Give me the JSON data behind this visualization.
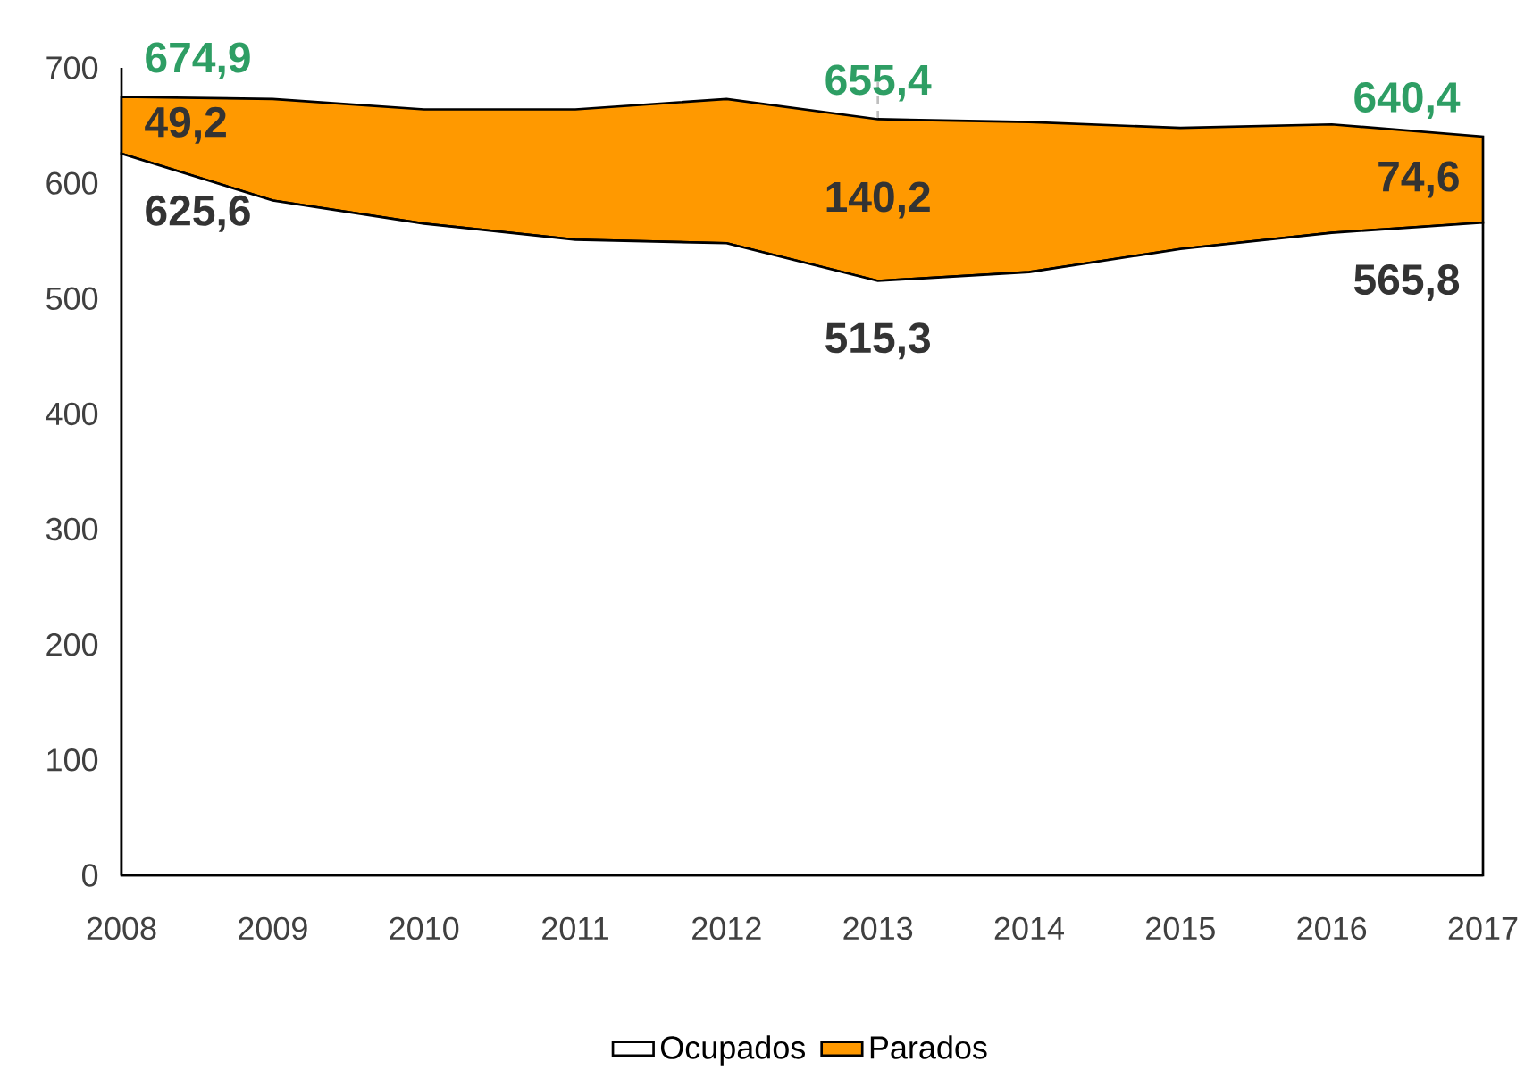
{
  "chart_data": {
    "type": "area",
    "stacked": true,
    "x": [
      2008,
      2009,
      2010,
      2011,
      2012,
      2013,
      2014,
      2015,
      2016,
      2017
    ],
    "xlim": [
      2008,
      2017
    ],
    "xticks": [
      2008,
      2009,
      2010,
      2011,
      2012,
      2013,
      2014,
      2015,
      2016,
      2017
    ],
    "ylim": [
      0,
      700
    ],
    "yticks": [
      0,
      100,
      200,
      300,
      400,
      500,
      600,
      700
    ],
    "legend": "bottom",
    "series": [
      {
        "name": "Ocupados",
        "color": "#ffffff",
        "values": [
          625.6,
          585,
          565,
          551,
          548,
          515.3,
          523,
          543,
          557,
          565.8
        ],
        "value_labels": [
          "625,6",
          null,
          null,
          null,
          null,
          "515,3",
          null,
          null,
          null,
          "565,8"
        ]
      },
      {
        "name": "Parados",
        "color": "#ff9900",
        "values": [
          49.2,
          88,
          99,
          113,
          125,
          140.2,
          130,
          105,
          94,
          74.6
        ],
        "value_labels": [
          "49,2",
          null,
          null,
          null,
          null,
          "140,2",
          null,
          null,
          null,
          "74,6"
        ]
      }
    ],
    "totals": [
      "674,9",
      null,
      null,
      null,
      null,
      "655,4",
      null,
      null,
      null,
      "640,4"
    ],
    "ref_lines": [
      {
        "axis": "x",
        "value": 2013,
        "color": "#bfbfbf",
        "line_style": "dashed"
      }
    ]
  }
}
